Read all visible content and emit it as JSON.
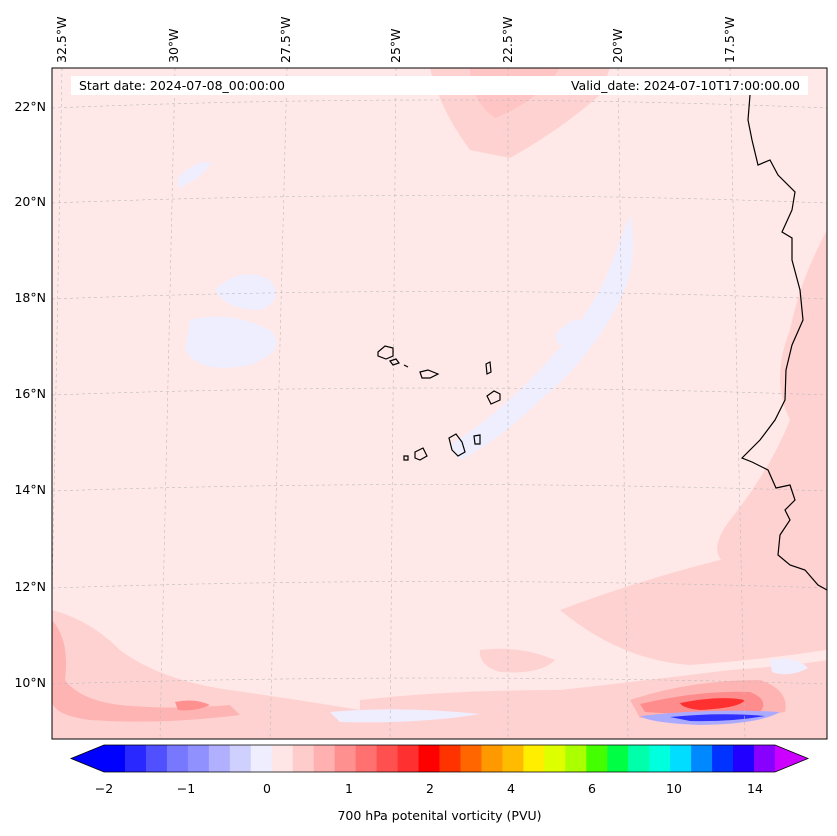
{
  "map": {
    "start_date_text": "Start date: 2024-07-08_00:00:00",
    "valid_date_text": "Valid_date: 2024-07-10T17:00:00.00",
    "longitude_labels": [
      "32.5°W",
      "30°W",
      "27.5°W",
      "25°W",
      "22.5°W",
      "20°W",
      "17.5°W"
    ],
    "latitude_labels": [
      "22°N",
      "20°N",
      "18°N",
      "16°N",
      "14°N",
      "12°N",
      "10°N"
    ],
    "field_colors": {
      "background": "#ffe8e8",
      "light_pink": "#ffd2d2",
      "pink": "#ffb4b4",
      "light_red": "#ff8c8c",
      "red": "#ff3030",
      "lavender": "#eeeeff",
      "light_blue": "#aaaaff",
      "blue": "#3030ff",
      "coastline": "#000000"
    }
  },
  "colorbar": {
    "title": "700 hPa potenital vorticity (PVU)",
    "tick_labels": [
      "−2",
      "−1",
      "0",
      "1",
      "2",
      "4",
      "6",
      "10",
      "14"
    ],
    "colors": [
      "#0000ff",
      "#2828ff",
      "#5050ff",
      "#7878ff",
      "#9090ff",
      "#b0b0ff",
      "#d0d0ff",
      "#eeeeff",
      "#ffe6e6",
      "#ffcccc",
      "#ffb0b0",
      "#ff9090",
      "#ff7070",
      "#ff5050",
      "#ff3030",
      "#ff0000",
      "#ff3300",
      "#ff6600",
      "#ff9900",
      "#ffbb00",
      "#ffee00",
      "#ddff00",
      "#aaff00",
      "#44ff00",
      "#00ff44",
      "#00ffaa",
      "#00ffdd",
      "#00ddff",
      "#0088ff",
      "#0033ff",
      "#2200ff",
      "#8800ff"
    ],
    "extend_low_color": "#0000ff",
    "extend_high_color": "#cc00ff"
  }
}
